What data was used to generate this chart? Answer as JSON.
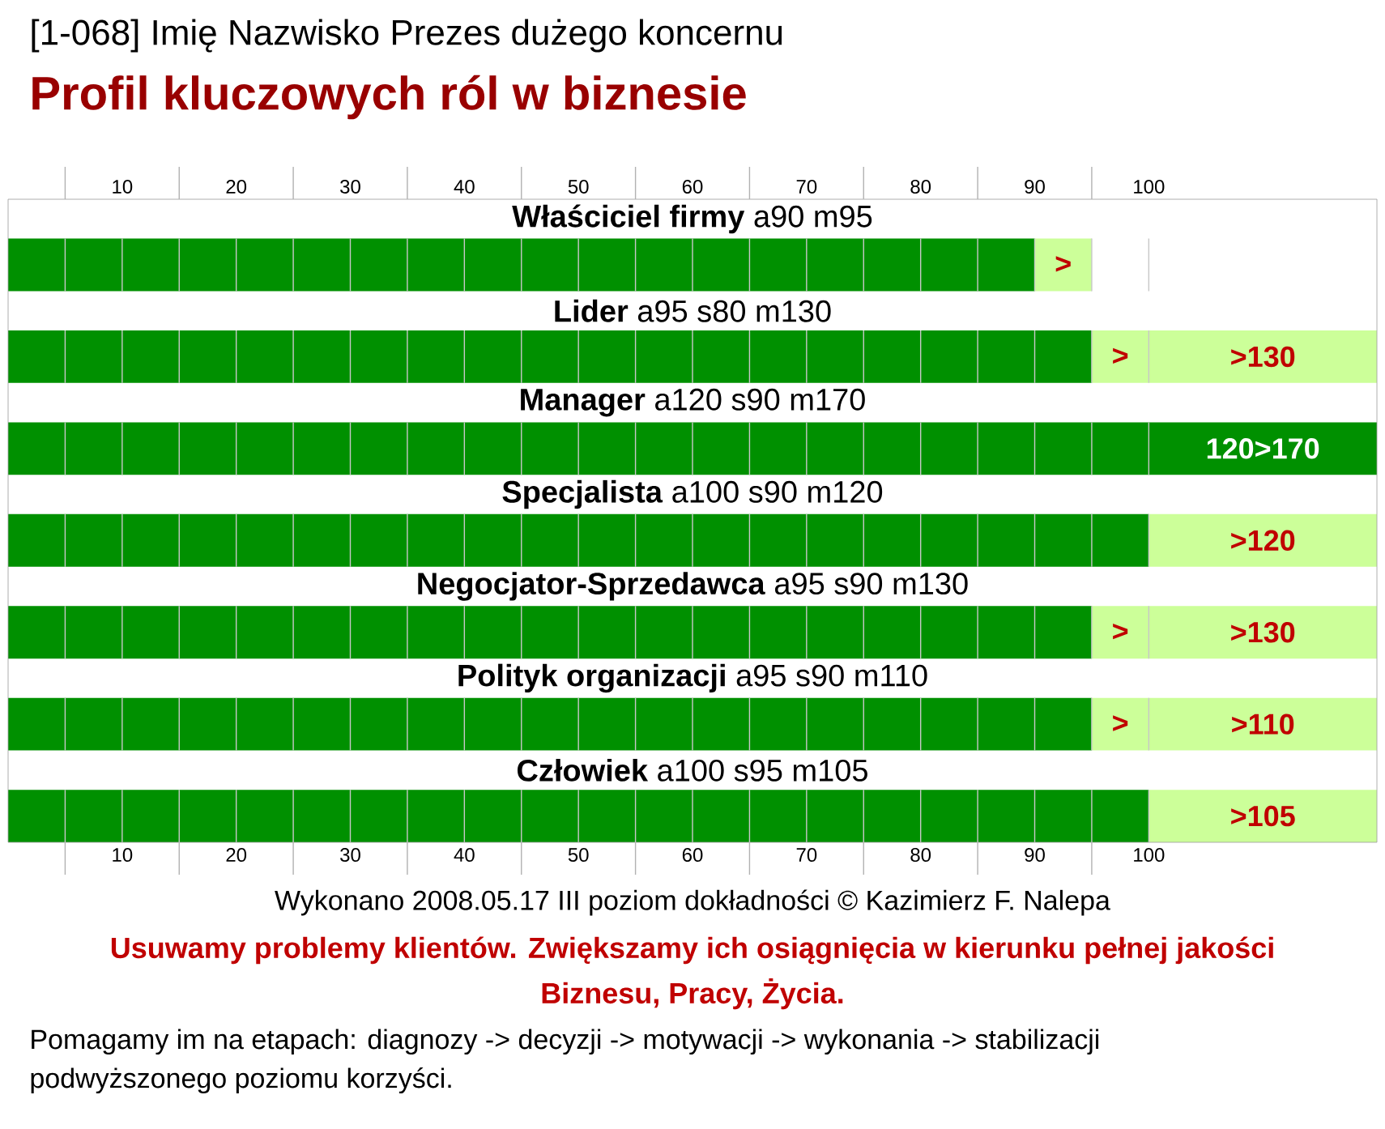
{
  "chart_data": {
    "type": "bar",
    "orientation": "horizontal",
    "stacked": true,
    "title": "[1-068] Imię Nazwisko Prezes dużego koncernu",
    "subtitle": "Profil kluczowych ról w biznesie",
    "categories": [
      "**Właściciel firmy** a90 m95",
      "**Lider** a95 s80 m130",
      "**Manager** a120 s90 m170",
      "**Specjalista** a100 s90 m120",
      "**Negocjator-Sprzedawca** a95 s90 m130",
      "**Polityk organizacji** a95 s90 m110",
      "**Człowiek** a100 s95 m105"
    ],
    "series": [
      {
        "color": "#009000",
        "values": [
          90,
          95,
          120,
          100,
          95,
          95,
          100
        ],
        "value_labels": [
          null,
          null,
          "120>170",
          null,
          null,
          null,
          null
        ]
      },
      {
        "color": "#ccff99",
        "values": [
          5,
          5,
          null,
          null,
          5,
          5,
          null
        ],
        "value_labels": [
          ">",
          ">",
          null,
          null,
          ">",
          ">",
          null
        ]
      },
      {
        "color": "#ccff99",
        "values": [
          null,
          20,
          null,
          20,
          20,
          20,
          20
        ],
        "value_labels": [
          null,
          ">130",
          null,
          ">120",
          ">130",
          ">110",
          ">105"
        ]
      }
    ],
    "xlim": [
      0,
      120
    ],
    "xticks": [
      {
        "value": 5,
        "label": null
      },
      10,
      {
        "value": 15,
        "label": null
      },
      20,
      {
        "value": 25,
        "label": null
      },
      30,
      {
        "value": 35,
        "label": null
      },
      40,
      {
        "value": 45,
        "label": null
      },
      50,
      {
        "value": 55,
        "label": null
      },
      60,
      {
        "value": 65,
        "label": null
      },
      70,
      {
        "value": 75,
        "label": null
      },
      80,
      {
        "value": 85,
        "label": null
      },
      90,
      {
        "value": 95,
        "label": null
      },
      100
    ],
    "x2lim": [
      0,
      120
    ],
    "x2ticks": [
      {
        "value": 5,
        "label": null
      },
      10,
      {
        "value": 15,
        "label": null
      },
      20,
      {
        "value": 25,
        "label": null
      },
      30,
      {
        "value": 35,
        "label": null
      },
      40,
      {
        "value": 45,
        "label": null
      },
      50,
      {
        "value": 55,
        "label": null
      },
      60,
      {
        "value": 65,
        "label": null
      },
      70,
      {
        "value": 75,
        "label": null
      },
      80,
      {
        "value": 85,
        "label": null
      },
      90,
      {
        "value": 95,
        "label": null
      },
      100
    ],
    "grid": "x",
    "annotations": [
      "Wykonano 2008.05.17 III poziom dokładności © Kazimierz F. Nalepa",
      "Usuwamy problemy klientów. Zwiększamy ich osiągnięcia w kierunku pełnej jakości Biznesu, Pracy, Życia.",
      "Pomagamy im na etapach: diagnozy -> decyzji -> motywacji -> wykonania -> stabilizacji podwyższonego poziomu korzyści."
    ]
  }
}
